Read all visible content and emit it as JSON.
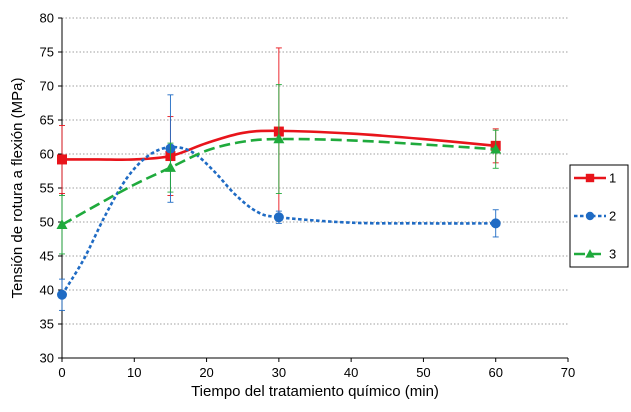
{
  "chart_data": {
    "type": "line",
    "title": "",
    "xlabel": "Tiempo del tratamiento químico (min)",
    "ylabel": "Tensión de rotura a flexión (MPa)",
    "xlim": [
      0,
      70
    ],
    "ylim": [
      30,
      80
    ],
    "xticks": [
      0,
      10,
      20,
      30,
      40,
      50,
      60,
      70
    ],
    "yticks": [
      30,
      35,
      40,
      45,
      50,
      55,
      60,
      65,
      70,
      75,
      80
    ],
    "grid": "horizontal-dotted",
    "legend_position": "right",
    "series": [
      {
        "name": "1",
        "color": "#e8141b",
        "line_style": "solid",
        "marker": "square",
        "x": [
          0,
          15,
          30,
          60
        ],
        "y": [
          59.2,
          59.7,
          63.3,
          61.2
        ],
        "err": [
          5.0,
          5.8,
          12.3,
          2.5
        ],
        "curve": [
          [
            0,
            59.2
          ],
          [
            5,
            59.2
          ],
          [
            10,
            59.2
          ],
          [
            15,
            59.7
          ],
          [
            20,
            61.6
          ],
          [
            25,
            63.1
          ],
          [
            30,
            63.4
          ],
          [
            40,
            63.0
          ],
          [
            50,
            62.2
          ],
          [
            60,
            61.2
          ]
        ]
      },
      {
        "name": "2",
        "color": "#1f6bc4",
        "line_style": "dotted",
        "marker": "circle",
        "x": [
          0,
          15,
          30,
          60
        ],
        "y": [
          39.3,
          60.8,
          50.7,
          49.8
        ],
        "err": [
          2.3,
          7.9,
          0.9,
          2.0
        ],
        "curve": [
          [
            0,
            39.3
          ],
          [
            3,
            44.5
          ],
          [
            6,
            51.0
          ],
          [
            9,
            56.5
          ],
          [
            12,
            59.8
          ],
          [
            15,
            61.0
          ],
          [
            18,
            60.3
          ],
          [
            21,
            57.5
          ],
          [
            24,
            54.0
          ],
          [
            27,
            51.5
          ],
          [
            30,
            50.7
          ],
          [
            40,
            49.9
          ],
          [
            50,
            49.8
          ],
          [
            60,
            49.8
          ]
        ]
      },
      {
        "name": "3",
        "color": "#1faa3c",
        "line_style": "dashed",
        "marker": "triangle",
        "x": [
          0,
          15,
          30,
          60
        ],
        "y": [
          49.6,
          58.0,
          62.2,
          60.7
        ],
        "err": [
          4.3,
          3.6,
          8.0,
          2.8
        ],
        "curve": [
          [
            0,
            49.6
          ],
          [
            5,
            52.6
          ],
          [
            10,
            55.5
          ],
          [
            15,
            58.0
          ],
          [
            20,
            60.5
          ],
          [
            25,
            61.8
          ],
          [
            30,
            62.2
          ],
          [
            40,
            62.0
          ],
          [
            50,
            61.4
          ],
          [
            60,
            60.7
          ]
        ]
      }
    ]
  }
}
